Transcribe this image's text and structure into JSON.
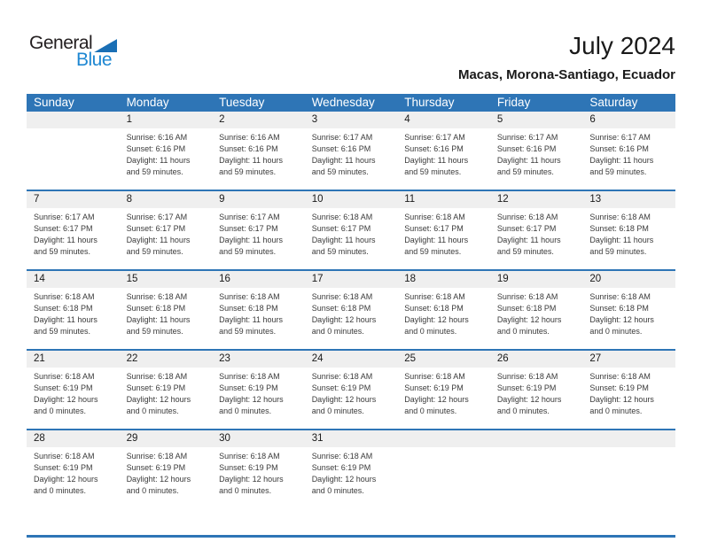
{
  "logo": {
    "general": "General",
    "blue": "Blue"
  },
  "header": {
    "title": "July 2024",
    "subtitle": "Macas, Morona-Santiago, Ecuador"
  },
  "colors": {
    "header_blue": "#2e75b6",
    "band_gray": "#efefef",
    "logo_triangle_blue": "#1a6fb5",
    "logo_text_blue": "#1e87d2"
  },
  "calendar": {
    "weekdays": [
      "Sunday",
      "Monday",
      "Tuesday",
      "Wednesday",
      "Thursday",
      "Friday",
      "Saturday"
    ],
    "weeks": [
      [
        {
          "day": ""
        },
        {
          "day": "1",
          "sunrise": "Sunrise: 6:16 AM",
          "sunset": "Sunset: 6:16 PM",
          "daylight1": "Daylight: 11 hours",
          "daylight2": "and 59 minutes."
        },
        {
          "day": "2",
          "sunrise": "Sunrise: 6:16 AM",
          "sunset": "Sunset: 6:16 PM",
          "daylight1": "Daylight: 11 hours",
          "daylight2": "and 59 minutes."
        },
        {
          "day": "3",
          "sunrise": "Sunrise: 6:17 AM",
          "sunset": "Sunset: 6:16 PM",
          "daylight1": "Daylight: 11 hours",
          "daylight2": "and 59 minutes."
        },
        {
          "day": "4",
          "sunrise": "Sunrise: 6:17 AM",
          "sunset": "Sunset: 6:16 PM",
          "daylight1": "Daylight: 11 hours",
          "daylight2": "and 59 minutes."
        },
        {
          "day": "5",
          "sunrise": "Sunrise: 6:17 AM",
          "sunset": "Sunset: 6:16 PM",
          "daylight1": "Daylight: 11 hours",
          "daylight2": "and 59 minutes."
        },
        {
          "day": "6",
          "sunrise": "Sunrise: 6:17 AM",
          "sunset": "Sunset: 6:16 PM",
          "daylight1": "Daylight: 11 hours",
          "daylight2": "and 59 minutes."
        }
      ],
      [
        {
          "day": "7",
          "sunrise": "Sunrise: 6:17 AM",
          "sunset": "Sunset: 6:17 PM",
          "daylight1": "Daylight: 11 hours",
          "daylight2": "and 59 minutes."
        },
        {
          "day": "8",
          "sunrise": "Sunrise: 6:17 AM",
          "sunset": "Sunset: 6:17 PM",
          "daylight1": "Daylight: 11 hours",
          "daylight2": "and 59 minutes."
        },
        {
          "day": "9",
          "sunrise": "Sunrise: 6:17 AM",
          "sunset": "Sunset: 6:17 PM",
          "daylight1": "Daylight: 11 hours",
          "daylight2": "and 59 minutes."
        },
        {
          "day": "10",
          "sunrise": "Sunrise: 6:18 AM",
          "sunset": "Sunset: 6:17 PM",
          "daylight1": "Daylight: 11 hours",
          "daylight2": "and 59 minutes."
        },
        {
          "day": "11",
          "sunrise": "Sunrise: 6:18 AM",
          "sunset": "Sunset: 6:17 PM",
          "daylight1": "Daylight: 11 hours",
          "daylight2": "and 59 minutes."
        },
        {
          "day": "12",
          "sunrise": "Sunrise: 6:18 AM",
          "sunset": "Sunset: 6:17 PM",
          "daylight1": "Daylight: 11 hours",
          "daylight2": "and 59 minutes."
        },
        {
          "day": "13",
          "sunrise": "Sunrise: 6:18 AM",
          "sunset": "Sunset: 6:18 PM",
          "daylight1": "Daylight: 11 hours",
          "daylight2": "and 59 minutes."
        }
      ],
      [
        {
          "day": "14",
          "sunrise": "Sunrise: 6:18 AM",
          "sunset": "Sunset: 6:18 PM",
          "daylight1": "Daylight: 11 hours",
          "daylight2": "and 59 minutes."
        },
        {
          "day": "15",
          "sunrise": "Sunrise: 6:18 AM",
          "sunset": "Sunset: 6:18 PM",
          "daylight1": "Daylight: 11 hours",
          "daylight2": "and 59 minutes."
        },
        {
          "day": "16",
          "sunrise": "Sunrise: 6:18 AM",
          "sunset": "Sunset: 6:18 PM",
          "daylight1": "Daylight: 11 hours",
          "daylight2": "and 59 minutes."
        },
        {
          "day": "17",
          "sunrise": "Sunrise: 6:18 AM",
          "sunset": "Sunset: 6:18 PM",
          "daylight1": "Daylight: 12 hours",
          "daylight2": "and 0 minutes."
        },
        {
          "day": "18",
          "sunrise": "Sunrise: 6:18 AM",
          "sunset": "Sunset: 6:18 PM",
          "daylight1": "Daylight: 12 hours",
          "daylight2": "and 0 minutes."
        },
        {
          "day": "19",
          "sunrise": "Sunrise: 6:18 AM",
          "sunset": "Sunset: 6:18 PM",
          "daylight1": "Daylight: 12 hours",
          "daylight2": "and 0 minutes."
        },
        {
          "day": "20",
          "sunrise": "Sunrise: 6:18 AM",
          "sunset": "Sunset: 6:18 PM",
          "daylight1": "Daylight: 12 hours",
          "daylight2": "and 0 minutes."
        }
      ],
      [
        {
          "day": "21",
          "sunrise": "Sunrise: 6:18 AM",
          "sunset": "Sunset: 6:19 PM",
          "daylight1": "Daylight: 12 hours",
          "daylight2": "and 0 minutes."
        },
        {
          "day": "22",
          "sunrise": "Sunrise: 6:18 AM",
          "sunset": "Sunset: 6:19 PM",
          "daylight1": "Daylight: 12 hours",
          "daylight2": "and 0 minutes."
        },
        {
          "day": "23",
          "sunrise": "Sunrise: 6:18 AM",
          "sunset": "Sunset: 6:19 PM",
          "daylight1": "Daylight: 12 hours",
          "daylight2": "and 0 minutes."
        },
        {
          "day": "24",
          "sunrise": "Sunrise: 6:18 AM",
          "sunset": "Sunset: 6:19 PM",
          "daylight1": "Daylight: 12 hours",
          "daylight2": "and 0 minutes."
        },
        {
          "day": "25",
          "sunrise": "Sunrise: 6:18 AM",
          "sunset": "Sunset: 6:19 PM",
          "daylight1": "Daylight: 12 hours",
          "daylight2": "and 0 minutes."
        },
        {
          "day": "26",
          "sunrise": "Sunrise: 6:18 AM",
          "sunset": "Sunset: 6:19 PM",
          "daylight1": "Daylight: 12 hours",
          "daylight2": "and 0 minutes."
        },
        {
          "day": "27",
          "sunrise": "Sunrise: 6:18 AM",
          "sunset": "Sunset: 6:19 PM",
          "daylight1": "Daylight: 12 hours",
          "daylight2": "and 0 minutes."
        }
      ],
      [
        {
          "day": "28",
          "sunrise": "Sunrise: 6:18 AM",
          "sunset": "Sunset: 6:19 PM",
          "daylight1": "Daylight: 12 hours",
          "daylight2": "and 0 minutes."
        },
        {
          "day": "29",
          "sunrise": "Sunrise: 6:18 AM",
          "sunset": "Sunset: 6:19 PM",
          "daylight1": "Daylight: 12 hours",
          "daylight2": "and 0 minutes."
        },
        {
          "day": "30",
          "sunrise": "Sunrise: 6:18 AM",
          "sunset": "Sunset: 6:19 PM",
          "daylight1": "Daylight: 12 hours",
          "daylight2": "and 0 minutes."
        },
        {
          "day": "31",
          "sunrise": "Sunrise: 6:18 AM",
          "sunset": "Sunset: 6:19 PM",
          "daylight1": "Daylight: 12 hours",
          "daylight2": "and 0 minutes."
        },
        {
          "day": ""
        },
        {
          "day": ""
        },
        {
          "day": ""
        }
      ]
    ]
  }
}
